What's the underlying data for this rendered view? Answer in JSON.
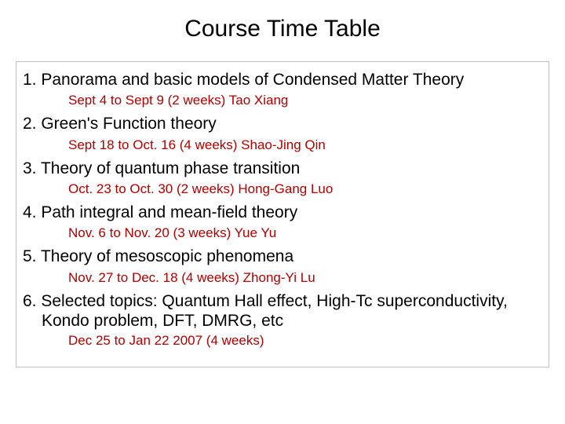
{
  "title": "Course Time Table",
  "items": [
    {
      "topic": "1. Panorama and basic models of Condensed Matter Theory",
      "detail": "Sept 4 to Sept 9 (2 weeks) Tao Xiang"
    },
    {
      "topic": "2. Green's Function theory",
      "detail": "Sept 18 to Oct. 16 (4 weeks) Shao-Jing Qin"
    },
    {
      "topic": "3. Theory of quantum phase transition",
      "detail": "Oct. 23 to Oct. 30 (2 weeks) Hong-Gang Luo"
    },
    {
      "topic": "4. Path integral and mean-field theory",
      "detail": "Nov. 6 to Nov. 20 (3 weeks) Yue Yu"
    },
    {
      "topic": "5. Theory of mesoscopic phenomena",
      "detail": "Nov. 27 to Dec. 18 (4 weeks) Zhong-Yi Lu"
    },
    {
      "topic": "6. Selected topics: Quantum Hall effect, High-Tc superconductivity, Kondo problem,  DFT, DMRG, etc",
      "detail": "Dec 25 to Jan 22 2007 (4 weeks)"
    }
  ],
  "colors": {
    "title_color": "#000000",
    "topic_color": "#000000",
    "detail_color": "#b00000",
    "border_color": "#c0c0c0",
    "background": "#ffffff"
  }
}
